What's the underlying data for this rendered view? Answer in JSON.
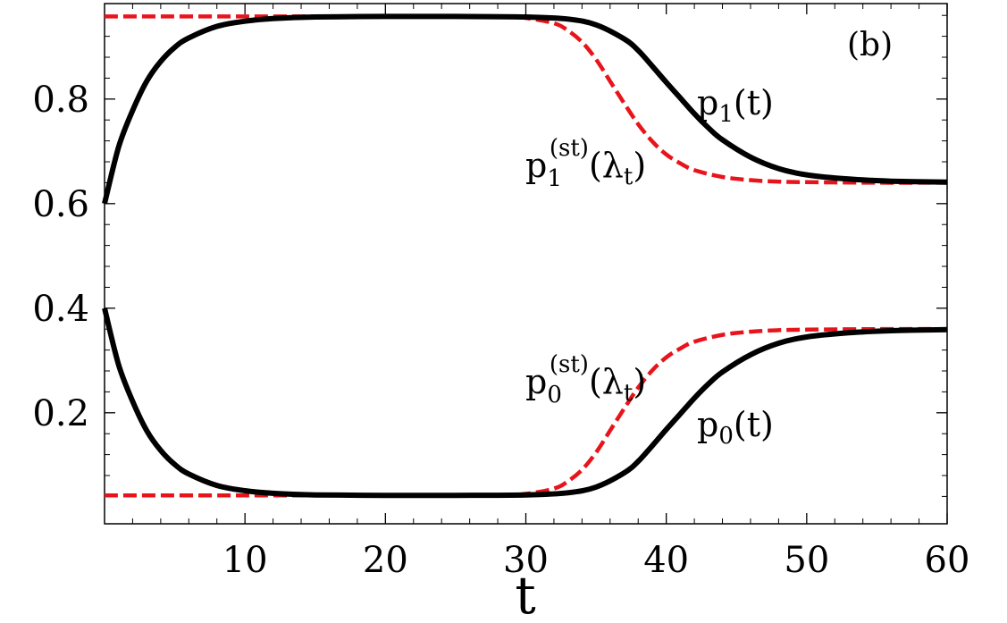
{
  "chart_data": {
    "type": "line",
    "title": "",
    "xlabel": "t",
    "ylabel": "",
    "panel_label": "(b)",
    "xlim": [
      0,
      60
    ],
    "ylim": [
      0,
      1
    ],
    "grid": false,
    "x_ticks": [
      10,
      20,
      30,
      40,
      50,
      60
    ],
    "x_tick_labels": [
      "10",
      "20",
      "30",
      "40",
      "50",
      "60"
    ],
    "y_ticks": [
      0.2,
      0.4,
      0.6,
      0.8
    ],
    "y_tick_labels": [
      "0.2",
      "0.4",
      "0.6",
      "0.8"
    ],
    "series": [
      {
        "style": "solid",
        "color": "#000000",
        "label_main": "p",
        "label_sub": "1",
        "label_rest": "(t)",
        "x": [
          0,
          1,
          2,
          3,
          4,
          5,
          6,
          8,
          10,
          12,
          15,
          20,
          25,
          30,
          33,
          35,
          37,
          38,
          39,
          40,
          41,
          42,
          43,
          44,
          46,
          48,
          50,
          53,
          56,
          60
        ],
        "values": [
          0.6,
          0.708,
          0.778,
          0.834,
          0.872,
          0.899,
          0.917,
          0.939,
          0.949,
          0.954,
          0.957,
          0.958,
          0.958,
          0.957,
          0.953,
          0.942,
          0.915,
          0.893,
          0.863,
          0.832,
          0.802,
          0.772,
          0.745,
          0.722,
          0.689,
          0.667,
          0.655,
          0.647,
          0.643,
          0.641
        ]
      },
      {
        "style": "dashed",
        "color": "#e8141b",
        "label_main": "p",
        "label_sub": "1",
        "label_sup": "(st)",
        "label_rest": "(λ",
        "label_rest_sub": "t",
        "label_end": ")",
        "x": [
          0,
          10,
          20,
          28,
          30,
          32,
          33,
          34,
          35,
          36,
          37,
          38,
          39,
          40,
          41,
          42,
          44,
          46,
          48,
          50,
          55,
          60
        ],
        "values": [
          0.958,
          0.958,
          0.958,
          0.958,
          0.955,
          0.945,
          0.931,
          0.909,
          0.876,
          0.834,
          0.792,
          0.752,
          0.719,
          0.694,
          0.677,
          0.664,
          0.651,
          0.645,
          0.642,
          0.641,
          0.64,
          0.64
        ]
      },
      {
        "style": "solid",
        "color": "#000000",
        "label_main": "p",
        "label_sub": "0",
        "label_rest": "(t)",
        "x": [
          0,
          1,
          2,
          3,
          4,
          5,
          6,
          8,
          10,
          12,
          15,
          20,
          25,
          30,
          33,
          35,
          37,
          38,
          39,
          40,
          41,
          42,
          43,
          44,
          46,
          48,
          50,
          53,
          56,
          60
        ],
        "values": [
          0.4,
          0.292,
          0.222,
          0.166,
          0.128,
          0.101,
          0.083,
          0.061,
          0.051,
          0.046,
          0.043,
          0.042,
          0.042,
          0.043,
          0.047,
          0.058,
          0.085,
          0.107,
          0.137,
          0.168,
          0.198,
          0.228,
          0.255,
          0.278,
          0.311,
          0.333,
          0.345,
          0.353,
          0.357,
          0.359
        ]
      },
      {
        "style": "dashed",
        "color": "#e8141b",
        "label_main": "p",
        "label_sub": "0",
        "label_sup": "(st)",
        "label_rest": "(λ",
        "label_rest_sub": "t",
        "label_end": ")",
        "x": [
          0,
          10,
          20,
          28,
          30,
          32,
          33,
          34,
          35,
          36,
          37,
          38,
          39,
          40,
          41,
          42,
          44,
          46,
          48,
          50,
          55,
          60
        ],
        "values": [
          0.042,
          0.042,
          0.042,
          0.042,
          0.045,
          0.055,
          0.069,
          0.091,
          0.124,
          0.166,
          0.208,
          0.248,
          0.281,
          0.306,
          0.323,
          0.336,
          0.349,
          0.355,
          0.358,
          0.359,
          0.36,
          0.36
        ]
      }
    ]
  }
}
